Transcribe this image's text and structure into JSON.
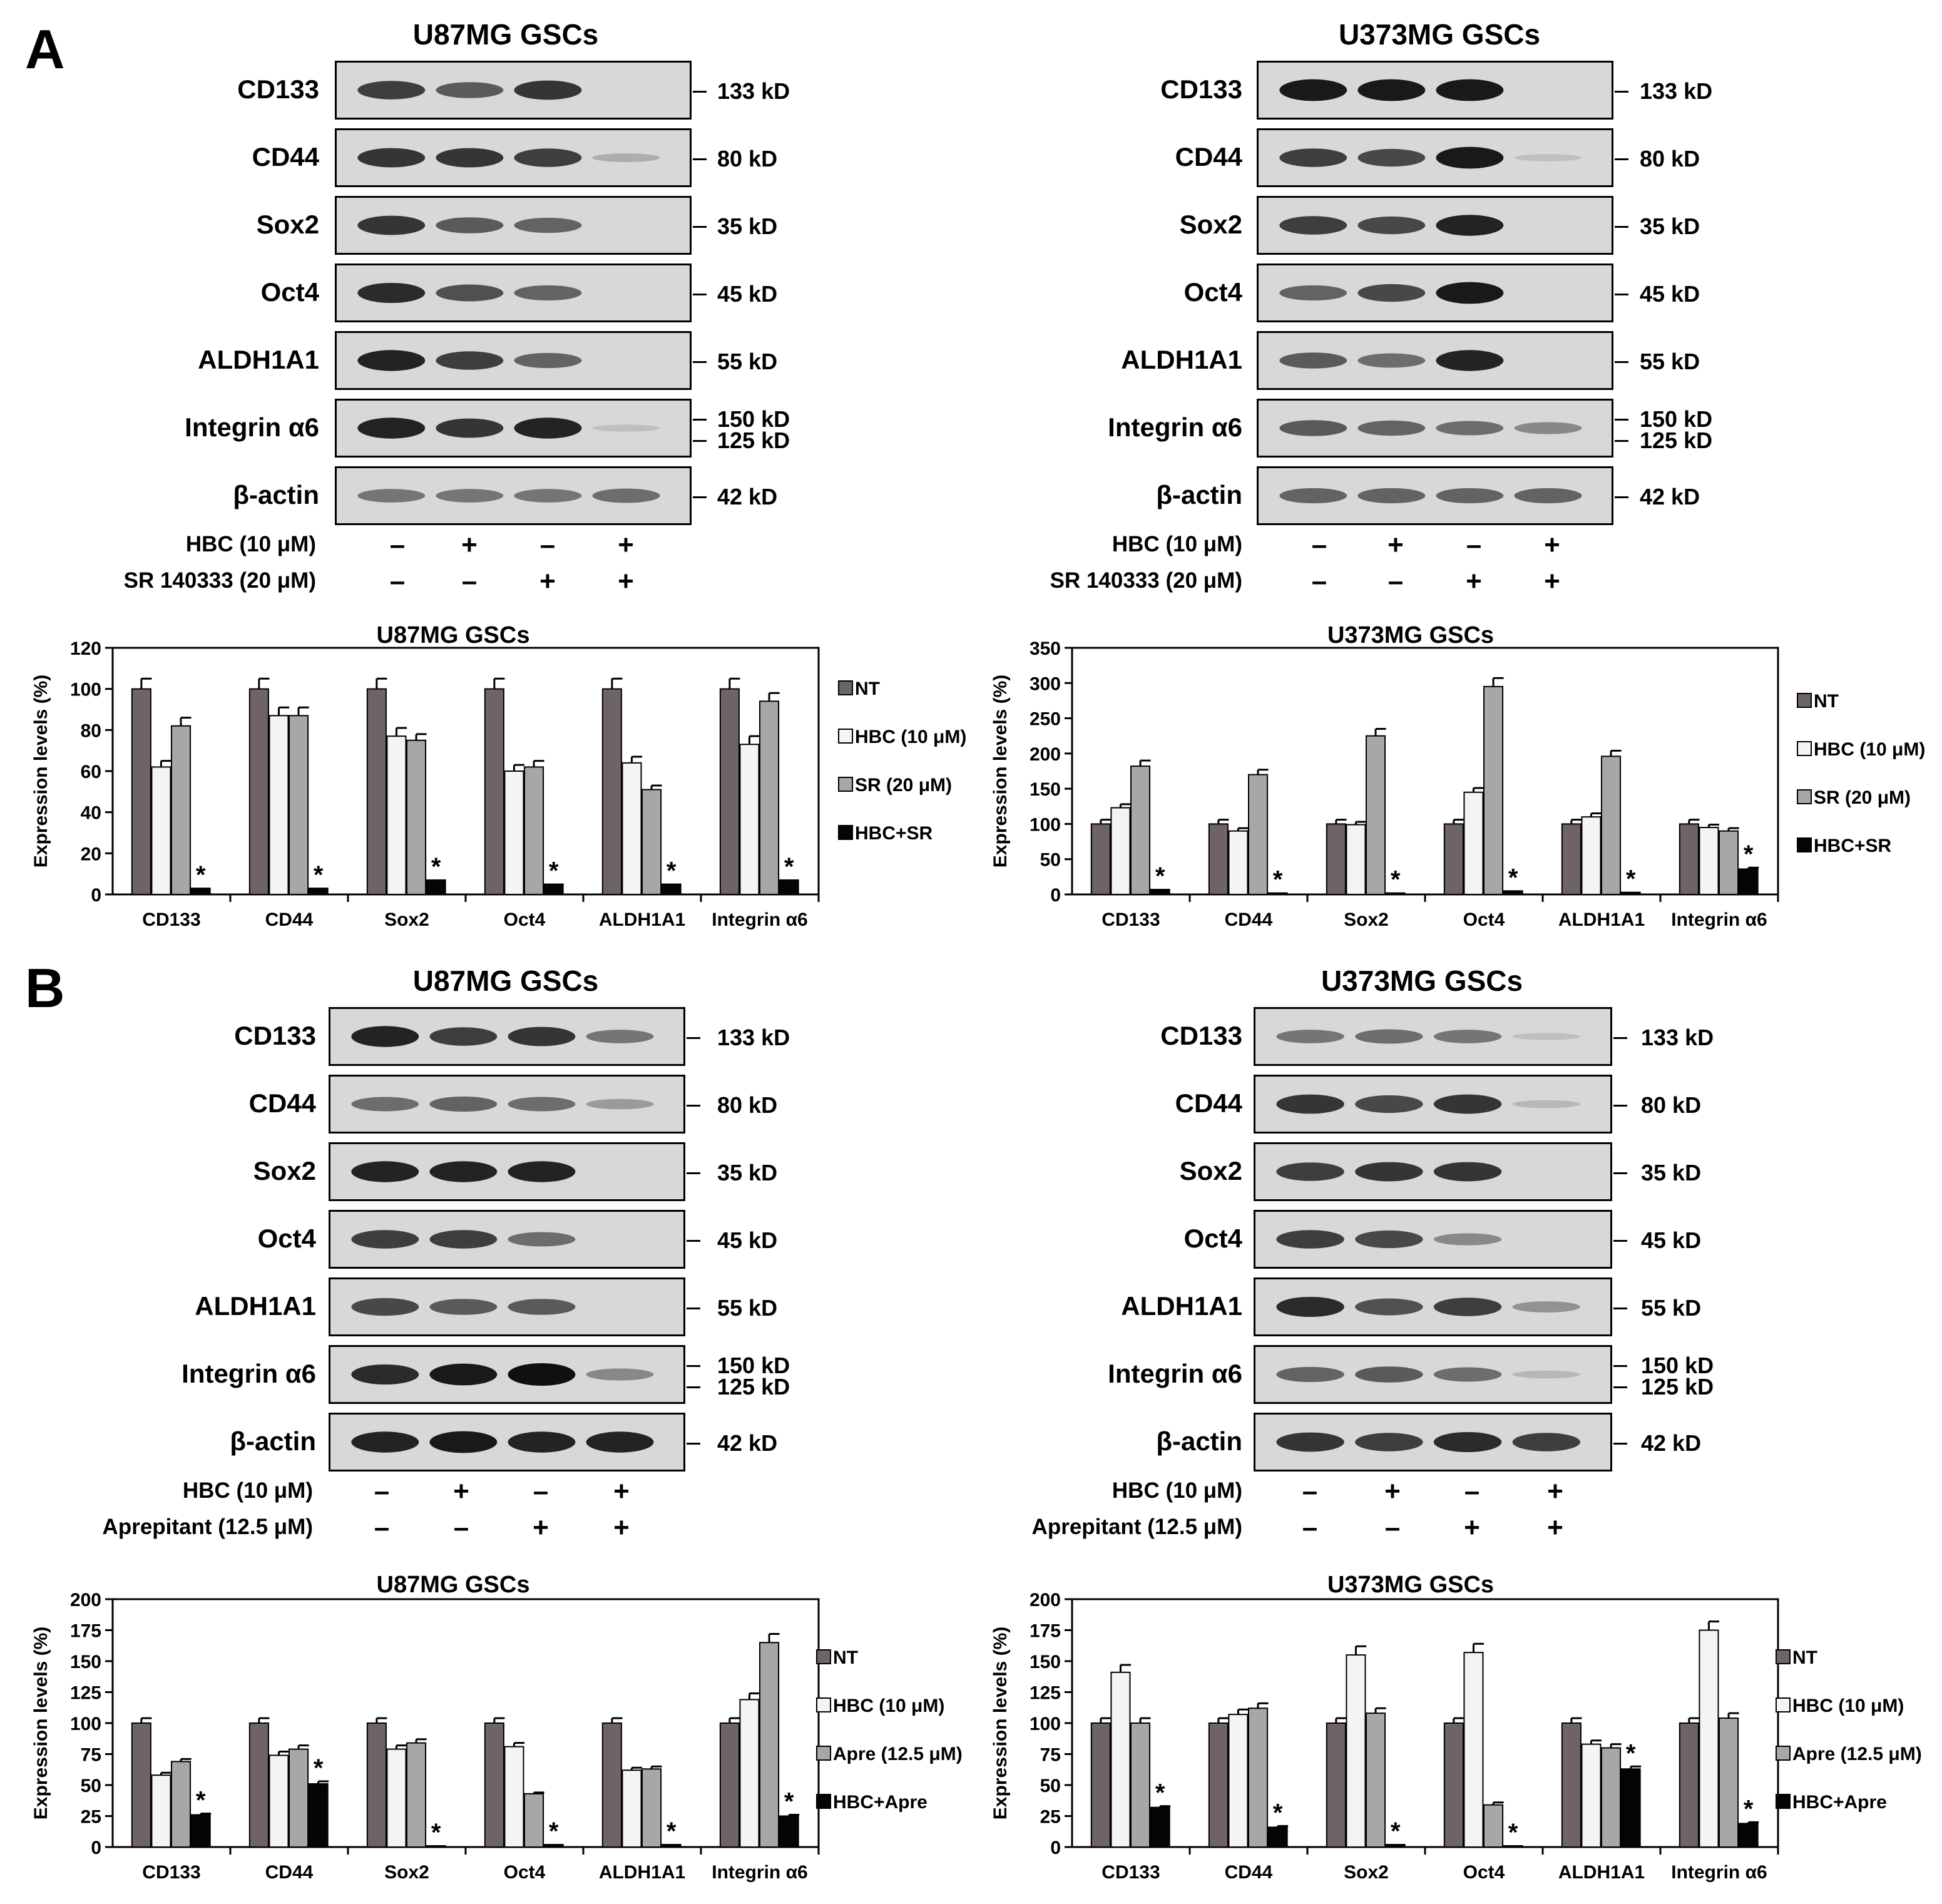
{
  "panels": [
    {
      "letter": "A",
      "blots": [
        {
          "title": "U87MG GSCs",
          "rows": [
            {
              "label": "CD133",
              "kd": [
                "133 kD"
              ],
              "bands": [
                0.75,
                0.6,
                0.8,
                0.0
              ]
            },
            {
              "label": "CD44",
              "kd": [
                "80 kD"
              ],
              "bands": [
                0.8,
                0.8,
                0.75,
                0.15
              ]
            },
            {
              "label": "Sox2",
              "kd": [
                "35 kD"
              ],
              "bands": [
                0.8,
                0.6,
                0.55,
                0.0
              ]
            },
            {
              "label": "Oct4",
              "kd": [
                "45 kD"
              ],
              "bands": [
                0.85,
                0.65,
                0.55,
                0.0
              ]
            },
            {
              "label": "ALDH1A1",
              "kd": [
                "55 kD"
              ],
              "bands": [
                0.9,
                0.75,
                0.55,
                0.0
              ]
            },
            {
              "label": "Integrin α6",
              "kd": [
                "150 kD",
                "125 kD"
              ],
              "bands": [
                0.9,
                0.8,
                0.9,
                0.05
              ]
            },
            {
              "label": "β-actin",
              "kd": [
                "42 kD"
              ],
              "bands": [
                0.45,
                0.45,
                0.45,
                0.5
              ]
            }
          ],
          "conditions": [
            {
              "label": "HBC (10 μM)",
              "signs": [
                "–",
                "+",
                "–",
                "+"
              ]
            },
            {
              "label": "SR 140333 (20 μM)",
              "signs": [
                "–",
                "–",
                "+",
                "+"
              ]
            }
          ]
        },
        {
          "title": "U373MG GSCs",
          "rows": [
            {
              "label": "CD133",
              "kd": [
                "133 kD"
              ],
              "bands": [
                0.95,
                0.95,
                0.95,
                0.0
              ]
            },
            {
              "label": "CD44",
              "kd": [
                "80 kD"
              ],
              "bands": [
                0.75,
                0.7,
                0.95,
                0.05
              ]
            },
            {
              "label": "Sox2",
              "kd": [
                "35 kD"
              ],
              "bands": [
                0.75,
                0.7,
                0.9,
                0.0
              ]
            },
            {
              "label": "Oct4",
              "kd": [
                "45 kD"
              ],
              "bands": [
                0.55,
                0.7,
                0.95,
                0.0
              ]
            },
            {
              "label": "ALDH1A1",
              "kd": [
                "55 kD"
              ],
              "bands": [
                0.6,
                0.5,
                0.9,
                0.0
              ]
            },
            {
              "label": "Integrin α6",
              "kd": [
                "150 kD",
                "125 kD"
              ],
              "bands": [
                0.6,
                0.55,
                0.5,
                0.35
              ]
            },
            {
              "label": "β-actin",
              "kd": [
                "42 kD"
              ],
              "bands": [
                0.55,
                0.55,
                0.55,
                0.55
              ]
            }
          ],
          "conditions": [
            {
              "label": "HBC (10 μM)",
              "signs": [
                "–",
                "+",
                "–",
                "+"
              ]
            },
            {
              "label": "SR 140333 (20 μM)",
              "signs": [
                "–",
                "–",
                "+",
                "+"
              ]
            }
          ]
        }
      ]
    },
    {
      "letter": "B",
      "blots": [
        {
          "title": "U87MG GSCs",
          "rows": [
            {
              "label": "CD133",
              "kd": [
                "133 kD"
              ],
              "bands": [
                0.9,
                0.75,
                0.8,
                0.45
              ]
            },
            {
              "label": "CD44",
              "kd": [
                "80 kD"
              ],
              "bands": [
                0.5,
                0.55,
                0.5,
                0.25
              ]
            },
            {
              "label": "Sox2",
              "kd": [
                "35 kD"
              ],
              "bands": [
                0.9,
                0.9,
                0.9,
                0.0
              ]
            },
            {
              "label": "Oct4",
              "kd": [
                "45 kD"
              ],
              "bands": [
                0.75,
                0.75,
                0.5,
                0.0
              ]
            },
            {
              "label": "ALDH1A1",
              "kd": [
                "55 kD"
              ],
              "bands": [
                0.7,
                0.6,
                0.6,
                0.0
              ]
            },
            {
              "label": "Integrin α6",
              "kd": [
                "150 kD",
                "125 kD"
              ],
              "bands": [
                0.85,
                0.95,
                1.0,
                0.35
              ]
            },
            {
              "label": "β-actin",
              "kd": [
                "42 kD"
              ],
              "bands": [
                0.9,
                0.95,
                0.9,
                0.9
              ]
            }
          ],
          "conditions": [
            {
              "label": "HBC (10 μM)",
              "signs": [
                "–",
                "+",
                "–",
                "+"
              ]
            },
            {
              "label": "Aprepitant (12.5 μM)",
              "signs": [
                "–",
                "–",
                "+",
                "+"
              ]
            }
          ]
        },
        {
          "title": "U373MG GSCs",
          "rows": [
            {
              "label": "CD133",
              "kd": [
                "133 kD"
              ],
              "bands": [
                0.45,
                0.5,
                0.45,
                0.05
              ]
            },
            {
              "label": "CD44",
              "kd": [
                "80 kD"
              ],
              "bands": [
                0.8,
                0.7,
                0.8,
                0.1
              ]
            },
            {
              "label": "Sox2",
              "kd": [
                "35 kD"
              ],
              "bands": [
                0.75,
                0.8,
                0.8,
                0.0
              ]
            },
            {
              "label": "Oct4",
              "kd": [
                "45 kD"
              ],
              "bands": [
                0.75,
                0.7,
                0.35,
                0.0
              ]
            },
            {
              "label": "ALDH1A1",
              "kd": [
                "55 kD"
              ],
              "bands": [
                0.85,
                0.65,
                0.75,
                0.3
              ]
            },
            {
              "label": "Integrin α6",
              "kd": [
                "150 kD",
                "125 kD"
              ],
              "bands": [
                0.55,
                0.6,
                0.5,
                0.1
              ]
            },
            {
              "label": "β-actin",
              "kd": [
                "42 kD"
              ],
              "bands": [
                0.8,
                0.75,
                0.85,
                0.75
              ]
            }
          ],
          "conditions": [
            {
              "label": "HBC (10 μM)",
              "signs": [
                "–",
                "+",
                "–",
                "+"
              ]
            },
            {
              "label": "Aprepitant (12.5 μM)",
              "signs": [
                "–",
                "–",
                "+",
                "+"
              ]
            }
          ]
        }
      ]
    }
  ],
  "chart_data": [
    {
      "type": "bar",
      "title": "U87MG GSCs",
      "xlabel": "",
      "ylabel": "Expression levels (%)",
      "ylim": [
        0,
        120
      ],
      "yticks": [
        "0",
        "20",
        "40",
        "60",
        "80",
        "100",
        "120"
      ],
      "categories": [
        "CD133",
        "CD44",
        "Sox2",
        "Oct4",
        "ALDH1A1",
        "Integrin α6"
      ],
      "series": [
        {
          "name": "NT",
          "color": "#6e6466",
          "values": [
            100,
            100,
            100,
            100,
            100,
            100
          ],
          "errors": [
            5,
            5,
            5,
            5,
            5,
            5
          ]
        },
        {
          "name": "HBC (10 μM)",
          "color": "#f4f4f4",
          "values": [
            62,
            87,
            77,
            60,
            64,
            73
          ],
          "errors": [
            3,
            4,
            4,
            3,
            3,
            4
          ]
        },
        {
          "name": "SR (20 μM)",
          "color": "#a7a7a7",
          "values": [
            82,
            87,
            75,
            62,
            51,
            94
          ],
          "errors": [
            4,
            4,
            3,
            3,
            2,
            4
          ]
        },
        {
          "name": "HBC+SR",
          "color": "#050505",
          "values": [
            3,
            3,
            7,
            5,
            5,
            7
          ],
          "errors": [
            0,
            0,
            0,
            0,
            0,
            0
          ]
        }
      ],
      "annotations": [
        "*",
        "*",
        "*",
        "*",
        "*",
        "*"
      ]
    },
    {
      "type": "bar",
      "title": "U373MG GSCs",
      "xlabel": "",
      "ylabel": "Expression levels (%)",
      "ylim": [
        0,
        350
      ],
      "yticks": [
        "0",
        "50",
        "100",
        "150",
        "200",
        "250",
        "300",
        "350"
      ],
      "categories": [
        "CD133",
        "CD44",
        "Sox2",
        "Oct4",
        "ALDH1A1",
        "Integrin α6"
      ],
      "series": [
        {
          "name": "NT",
          "color": "#6e6466",
          "values": [
            100,
            100,
            100,
            100,
            100,
            100
          ],
          "errors": [
            6,
            6,
            6,
            6,
            6,
            6
          ]
        },
        {
          "name": "HBC (10 μM)",
          "color": "#f4f4f4",
          "values": [
            123,
            90,
            99,
            145,
            110,
            95
          ],
          "errors": [
            5,
            4,
            4,
            6,
            5,
            4
          ]
        },
        {
          "name": "SR (20 μM)",
          "color": "#a7a7a7",
          "values": [
            182,
            170,
            225,
            295,
            196,
            90
          ],
          "errors": [
            8,
            7,
            10,
            12,
            8,
            4
          ]
        },
        {
          "name": "HBC+SR",
          "color": "#050505",
          "values": [
            7,
            2,
            2,
            5,
            3,
            36
          ],
          "errors": [
            0,
            0,
            0,
            0,
            0,
            2
          ]
        }
      ],
      "annotations": [
        "*",
        "*",
        "*",
        "*",
        "*",
        "*"
      ]
    },
    {
      "type": "bar",
      "title": "U87MG GSCs",
      "xlabel": "",
      "ylabel": "Expression levels (%)",
      "ylim": [
        0,
        200
      ],
      "yticks": [
        "0",
        "25",
        "50",
        "75",
        "100",
        "125",
        "150",
        "175",
        "200"
      ],
      "categories": [
        "CD133",
        "CD44",
        "Sox2",
        "Oct4",
        "ALDH1A1",
        "Integrin α6"
      ],
      "series": [
        {
          "name": "NT",
          "color": "#6e6466",
          "values": [
            100,
            100,
            100,
            100,
            100,
            100
          ],
          "errors": [
            4,
            4,
            4,
            4,
            4,
            4
          ]
        },
        {
          "name": "HBC (10 μM)",
          "color": "#f4f4f4",
          "values": [
            58,
            74,
            79,
            81,
            62,
            119
          ],
          "errors": [
            2,
            3,
            3,
            3,
            2,
            5
          ]
        },
        {
          "name": "Apre (12.5 μM)",
          "color": "#a7a7a7",
          "values": [
            69,
            79,
            84,
            43,
            63,
            165
          ],
          "errors": [
            2,
            3,
            3,
            1,
            2,
            7
          ]
        },
        {
          "name": "HBC+Apre",
          "color": "#050505",
          "values": [
            26,
            51,
            1,
            2,
            2,
            25
          ],
          "errors": [
            1,
            2,
            0,
            0,
            0,
            1
          ]
        }
      ],
      "annotations": [
        "*",
        "*",
        "*",
        "*",
        "*",
        "*"
      ]
    },
    {
      "type": "bar",
      "title": "U373MG GSCs",
      "xlabel": "",
      "ylabel": "Expression levels (%)",
      "ylim": [
        0,
        200
      ],
      "yticks": [
        "0",
        "25",
        "50",
        "75",
        "100",
        "125",
        "150",
        "175",
        "200"
      ],
      "categories": [
        "CD133",
        "CD44",
        "Sox2",
        "Oct4",
        "ALDH1A1",
        "Integrin α6"
      ],
      "series": [
        {
          "name": "NT",
          "color": "#6e6466",
          "values": [
            100,
            100,
            100,
            100,
            100,
            100
          ],
          "errors": [
            4,
            4,
            4,
            4,
            4,
            4
          ]
        },
        {
          "name": "HBC (10 μM)",
          "color": "#f4f4f4",
          "values": [
            141,
            107,
            155,
            157,
            83,
            175
          ],
          "errors": [
            6,
            4,
            7,
            7,
            3,
            7
          ]
        },
        {
          "name": "Apre (12.5 μM)",
          "color": "#a7a7a7",
          "values": [
            100,
            112,
            108,
            34,
            80,
            104
          ],
          "errors": [
            4,
            4,
            4,
            2,
            3,
            4
          ]
        },
        {
          "name": "HBC+Apre",
          "color": "#050505",
          "values": [
            32,
            16,
            2,
            1,
            63,
            19
          ],
          "errors": [
            1,
            1,
            0,
            0,
            2,
            1
          ]
        }
      ],
      "annotations": [
        "*",
        "*",
        "*",
        "*",
        "*",
        "*"
      ]
    }
  ]
}
